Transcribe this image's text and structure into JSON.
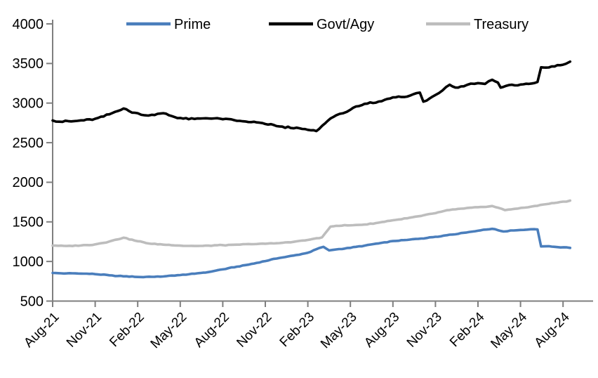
{
  "chart_data": {
    "type": "line",
    "title": "",
    "legend": {
      "position": "top",
      "entries": [
        "Prime",
        "Govt/Agy",
        "Treasury"
      ]
    },
    "x_axis": {
      "tick_labels": [
        "Aug-21",
        "Nov-21",
        "Feb-22",
        "May-22",
        "Aug-22",
        "Nov-22",
        "Feb-23",
        "May-23",
        "Aug-23",
        "Nov-23",
        "Feb-24",
        "May-24",
        "Aug-24"
      ],
      "months_between_ticks": 3,
      "domain_months": [
        0,
        36.5
      ],
      "start_month": "Aug-21",
      "end_month": "Aug-24"
    },
    "y_axis": {
      "ticks": [
        500,
        1000,
        1500,
        2000,
        2500,
        3000,
        3500,
        4000
      ],
      "ylim": [
        500,
        4000
      ],
      "grid": false
    },
    "axis_color": "#7f7f7f",
    "series": [
      {
        "name": "Prime",
        "color": "#4a7ebc",
        "jitter": 5,
        "points": [
          [
            0,
            855
          ],
          [
            1,
            850
          ],
          [
            2,
            847
          ],
          [
            3,
            840
          ],
          [
            4,
            826
          ],
          [
            5,
            812
          ],
          [
            6,
            804
          ],
          [
            7,
            806
          ],
          [
            8,
            814
          ],
          [
            9,
            828
          ],
          [
            10,
            845
          ],
          [
            11,
            866
          ],
          [
            12,
            900
          ],
          [
            13,
            935
          ],
          [
            14,
            968
          ],
          [
            15,
            1005
          ],
          [
            16,
            1045
          ],
          [
            17,
            1075
          ],
          [
            18,
            1110
          ],
          [
            18.8,
            1170
          ],
          [
            19.1,
            1185
          ],
          [
            19.5,
            1140
          ],
          [
            20,
            1152
          ],
          [
            21,
            1172
          ],
          [
            22,
            1200
          ],
          [
            23,
            1228
          ],
          [
            24,
            1258
          ],
          [
            25,
            1272
          ],
          [
            26,
            1290
          ],
          [
            27,
            1312
          ],
          [
            28,
            1338
          ],
          [
            29,
            1362
          ],
          [
            30,
            1388
          ],
          [
            31,
            1412
          ],
          [
            31.8,
            1378
          ],
          [
            32.3,
            1392
          ],
          [
            33,
            1398
          ],
          [
            34.2,
            1405
          ],
          [
            34.45,
            1190
          ],
          [
            35,
            1193
          ],
          [
            35.6,
            1181
          ],
          [
            36.5,
            1172
          ]
        ]
      },
      {
        "name": "Govt/Agy",
        "color": "#000000",
        "jitter": 13,
        "points": [
          [
            0,
            2780
          ],
          [
            0.7,
            2763
          ],
          [
            1.5,
            2772
          ],
          [
            2,
            2782
          ],
          [
            3,
            2802
          ],
          [
            4,
            2858
          ],
          [
            4.6,
            2900
          ],
          [
            5,
            2932
          ],
          [
            5.4,
            2898
          ],
          [
            6,
            2872
          ],
          [
            6.5,
            2846
          ],
          [
            7,
            2852
          ],
          [
            7.6,
            2868
          ],
          [
            8,
            2866
          ],
          [
            8.4,
            2836
          ],
          [
            9,
            2812
          ],
          [
            9.6,
            2796
          ],
          [
            10,
            2800
          ],
          [
            11,
            2806
          ],
          [
            12,
            2796
          ],
          [
            13,
            2776
          ],
          [
            14,
            2760
          ],
          [
            15,
            2736
          ],
          [
            16,
            2706
          ],
          [
            17,
            2682
          ],
          [
            18,
            2662
          ],
          [
            18.6,
            2646
          ],
          [
            19,
            2712
          ],
          [
            19.6,
            2806
          ],
          [
            20,
            2846
          ],
          [
            20.5,
            2872
          ],
          [
            21,
            2916
          ],
          [
            21.6,
            2962
          ],
          [
            22,
            2990
          ],
          [
            23,
            3020
          ],
          [
            24,
            3072
          ],
          [
            25,
            3082
          ],
          [
            25.9,
            3132
          ],
          [
            26.15,
            3018
          ],
          [
            26.6,
            3060
          ],
          [
            27,
            3102
          ],
          [
            27.5,
            3160
          ],
          [
            28,
            3232
          ],
          [
            28.4,
            3196
          ],
          [
            29,
            3212
          ],
          [
            29.5,
            3246
          ],
          [
            30,
            3252
          ],
          [
            30.5,
            3242
          ],
          [
            31,
            3295
          ],
          [
            31.4,
            3260
          ],
          [
            31.6,
            3195
          ],
          [
            32,
            3218
          ],
          [
            32.8,
            3224
          ],
          [
            33.6,
            3242
          ],
          [
            34.2,
            3266
          ],
          [
            34.45,
            3452
          ],
          [
            34.8,
            3448
          ],
          [
            35.2,
            3462
          ],
          [
            35.8,
            3478
          ],
          [
            36.2,
            3496
          ],
          [
            36.5,
            3522
          ]
        ]
      },
      {
        "name": "Treasury",
        "color": "#bdbdbd",
        "jitter": 6,
        "points": [
          [
            0,
            1200
          ],
          [
            1,
            1196
          ],
          [
            2,
            1202
          ],
          [
            3,
            1216
          ],
          [
            4,
            1252
          ],
          [
            5,
            1300
          ],
          [
            6,
            1256
          ],
          [
            7,
            1222
          ],
          [
            8,
            1210
          ],
          [
            9,
            1200
          ],
          [
            10,
            1196
          ],
          [
            11,
            1200
          ],
          [
            12,
            1206
          ],
          [
            13,
            1212
          ],
          [
            14,
            1218
          ],
          [
            15,
            1224
          ],
          [
            16,
            1232
          ],
          [
            17,
            1248
          ],
          [
            18,
            1272
          ],
          [
            19,
            1305
          ],
          [
            19.6,
            1440
          ],
          [
            20,
            1450
          ],
          [
            21,
            1456
          ],
          [
            22,
            1466
          ],
          [
            23,
            1490
          ],
          [
            24,
            1520
          ],
          [
            25,
            1545
          ],
          [
            26,
            1575
          ],
          [
            27,
            1610
          ],
          [
            28,
            1650
          ],
          [
            29,
            1668
          ],
          [
            30,
            1685
          ],
          [
            31,
            1700
          ],
          [
            31.9,
            1648
          ],
          [
            32.6,
            1665
          ],
          [
            33.3,
            1680
          ],
          [
            34,
            1700
          ],
          [
            35,
            1728
          ],
          [
            36,
            1755
          ],
          [
            36.5,
            1765
          ]
        ]
      }
    ]
  }
}
